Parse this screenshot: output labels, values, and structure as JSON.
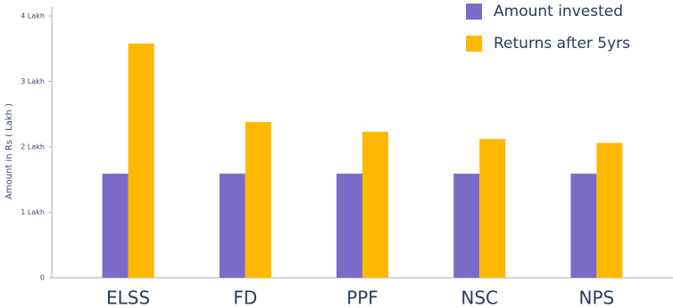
{
  "chart_data": {
    "type": "bar",
    "y_label": "Amount in Rs ( Lakh )",
    "categories": [
      "ELSS",
      "FD",
      "PPF",
      "NSC",
      "NPS"
    ],
    "series": [
      {
        "name": "Amount invested",
        "color": "#7b6bc7",
        "values": [
          1.59,
          1.59,
          1.59,
          1.59,
          1.59
        ]
      },
      {
        "name": "Returns after 5yrs",
        "color": "#ffb900",
        "values": [
          3.58,
          2.38,
          2.23,
          2.12,
          2.06
        ]
      }
    ],
    "ylim": [
      0,
      4
    ],
    "yticks": [
      0,
      {
        "value": 1,
        "label": "1 Lakh"
      },
      {
        "value": 2,
        "label": "2 Lakh"
      },
      {
        "value": 3,
        "label": "3 Lakh"
      },
      {
        "value": 4,
        "label": "4 Lakh"
      }
    ]
  }
}
